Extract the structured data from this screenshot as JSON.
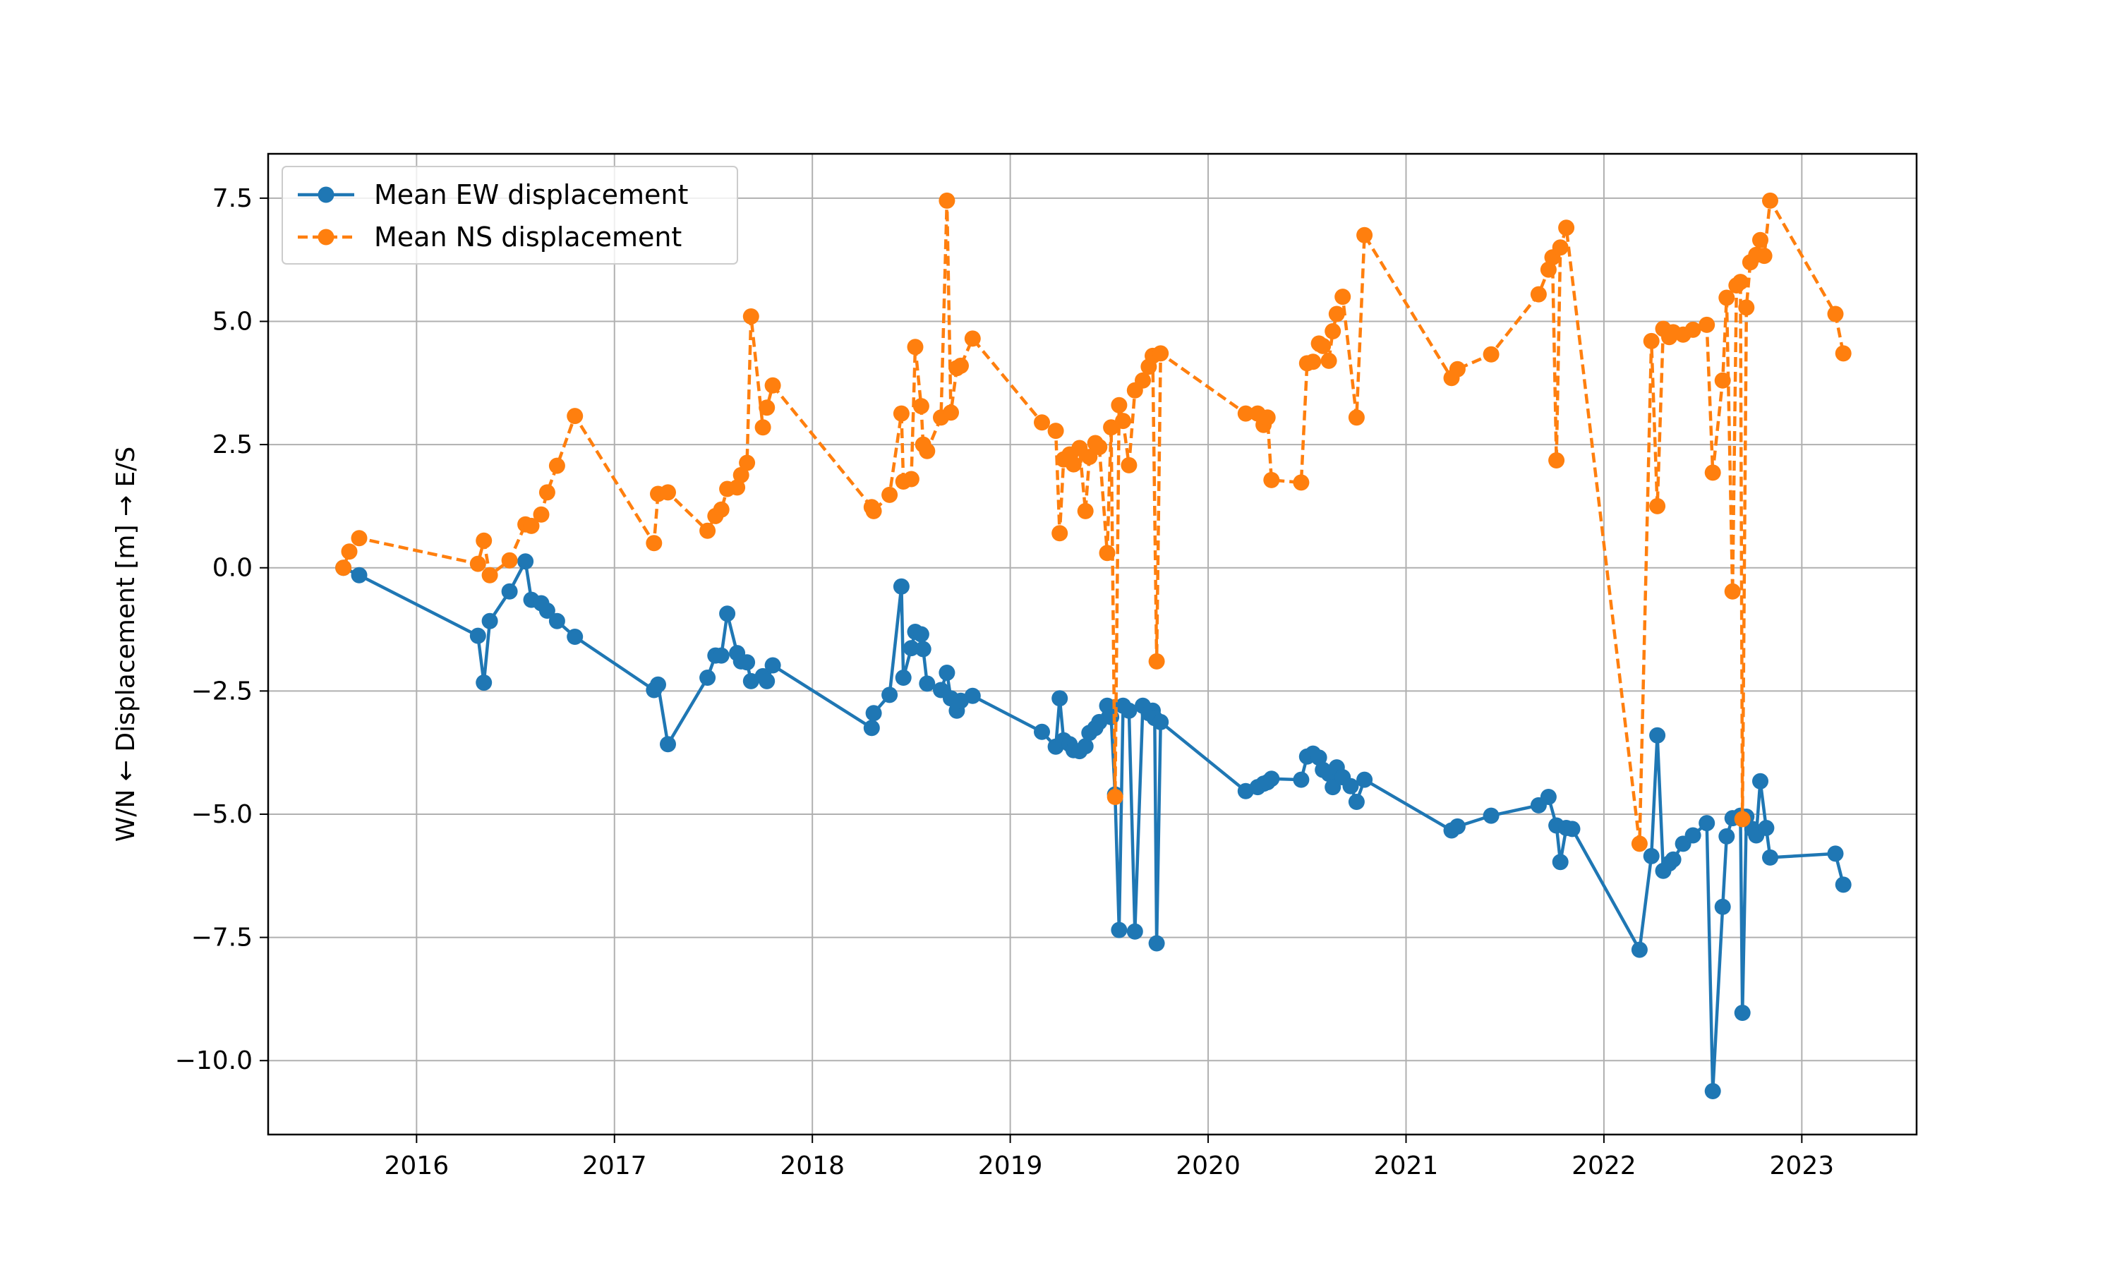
{
  "chart_data": {
    "type": "line",
    "xlabel": "",
    "ylabel": "W/N ← Displacement [m] → E/S",
    "x_tick_labels": [
      "2016",
      "2017",
      "2018",
      "2019",
      "2020",
      "2021",
      "2022",
      "2023"
    ],
    "y_tick_labels": [
      "−10.0",
      "−7.5",
      "−5.0",
      "−2.5",
      "0.0",
      "2.5",
      "5.0",
      "7.5"
    ],
    "xlim": [
      2015.25,
      2023.58
    ],
    "ylim": [
      -11.5,
      8.4
    ],
    "grid": true,
    "legend": "top-left",
    "series": [
      {
        "name": "Mean EW displacement",
        "color": "#1f77b4",
        "line_style": "solid",
        "marker": "circle",
        "points": [
          [
            2015.63,
            0.0
          ],
          [
            2015.71,
            -0.15
          ],
          [
            2016.31,
            -1.38
          ],
          [
            2016.34,
            -2.33
          ],
          [
            2016.37,
            -1.08
          ],
          [
            2016.47,
            -0.48
          ],
          [
            2016.55,
            0.13
          ],
          [
            2016.58,
            -0.65
          ],
          [
            2016.63,
            -0.72
          ],
          [
            2016.66,
            -0.87
          ],
          [
            2016.71,
            -1.08
          ],
          [
            2016.8,
            -1.4
          ],
          [
            2017.2,
            -2.48
          ],
          [
            2017.22,
            -2.37
          ],
          [
            2017.27,
            -3.58
          ],
          [
            2017.47,
            -2.23
          ],
          [
            2017.51,
            -1.78
          ],
          [
            2017.54,
            -1.78
          ],
          [
            2017.57,
            -0.93
          ],
          [
            2017.62,
            -1.73
          ],
          [
            2017.64,
            -1.9
          ],
          [
            2017.67,
            -1.92
          ],
          [
            2017.69,
            -2.3
          ],
          [
            2017.75,
            -2.2
          ],
          [
            2017.77,
            -2.3
          ],
          [
            2017.8,
            -1.98
          ],
          [
            2018.3,
            -3.25
          ],
          [
            2018.31,
            -2.95
          ],
          [
            2018.39,
            -2.58
          ],
          [
            2018.45,
            -0.38
          ],
          [
            2018.46,
            -2.23
          ],
          [
            2018.5,
            -1.63
          ],
          [
            2018.52,
            -1.3
          ],
          [
            2018.55,
            -1.35
          ],
          [
            2018.56,
            -1.65
          ],
          [
            2018.58,
            -2.35
          ],
          [
            2018.65,
            -2.48
          ],
          [
            2018.68,
            -2.13
          ],
          [
            2018.7,
            -2.65
          ],
          [
            2018.73,
            -2.9
          ],
          [
            2018.75,
            -2.7
          ],
          [
            2018.81,
            -2.6
          ],
          [
            2019.16,
            -3.33
          ],
          [
            2019.23,
            -3.63
          ],
          [
            2019.25,
            -2.65
          ],
          [
            2019.27,
            -3.5
          ],
          [
            2019.3,
            -3.58
          ],
          [
            2019.32,
            -3.7
          ],
          [
            2019.35,
            -3.72
          ],
          [
            2019.38,
            -3.62
          ],
          [
            2019.4,
            -3.35
          ],
          [
            2019.43,
            -3.25
          ],
          [
            2019.45,
            -3.13
          ],
          [
            2019.49,
            -2.8
          ],
          [
            2019.51,
            -3.03
          ],
          [
            2019.53,
            -4.6
          ],
          [
            2019.55,
            -7.35
          ],
          [
            2019.57,
            -2.8
          ],
          [
            2019.6,
            -2.9
          ],
          [
            2019.63,
            -7.38
          ],
          [
            2019.67,
            -2.8
          ],
          [
            2019.7,
            -2.95
          ],
          [
            2019.72,
            -2.9
          ],
          [
            2019.73,
            -3.05
          ],
          [
            2019.74,
            -7.62
          ],
          [
            2019.76,
            -3.13
          ],
          [
            2020.19,
            -4.53
          ],
          [
            2020.25,
            -4.45
          ],
          [
            2020.28,
            -4.38
          ],
          [
            2020.3,
            -4.35
          ],
          [
            2020.32,
            -4.28
          ],
          [
            2020.47,
            -4.3
          ],
          [
            2020.5,
            -3.83
          ],
          [
            2020.53,
            -3.77
          ],
          [
            2020.56,
            -3.85
          ],
          [
            2020.58,
            -4.1
          ],
          [
            2020.61,
            -4.18
          ],
          [
            2020.63,
            -4.45
          ],
          [
            2020.65,
            -4.05
          ],
          [
            2020.68,
            -4.25
          ],
          [
            2020.72,
            -4.43
          ],
          [
            2020.75,
            -4.75
          ],
          [
            2020.79,
            -4.3
          ],
          [
            2021.23,
            -5.33
          ],
          [
            2021.26,
            -5.25
          ],
          [
            2021.43,
            -5.03
          ],
          [
            2021.67,
            -4.82
          ],
          [
            2021.72,
            -4.65
          ],
          [
            2021.76,
            -5.23
          ],
          [
            2021.78,
            -5.97
          ],
          [
            2021.81,
            -5.28
          ],
          [
            2021.84,
            -5.3
          ],
          [
            2022.18,
            -7.75
          ],
          [
            2022.24,
            -5.85
          ],
          [
            2022.27,
            -3.4
          ],
          [
            2022.3,
            -6.15
          ],
          [
            2022.33,
            -6.0
          ],
          [
            2022.35,
            -5.92
          ],
          [
            2022.4,
            -5.6
          ],
          [
            2022.45,
            -5.43
          ],
          [
            2022.52,
            -5.18
          ],
          [
            2022.55,
            -10.62
          ],
          [
            2022.6,
            -6.88
          ],
          [
            2022.62,
            -5.45
          ],
          [
            2022.65,
            -5.08
          ],
          [
            2022.69,
            -5.03
          ],
          [
            2022.7,
            -9.03
          ],
          [
            2022.72,
            -5.05
          ],
          [
            2022.75,
            -5.3
          ],
          [
            2022.77,
            -5.43
          ],
          [
            2022.79,
            -4.33
          ],
          [
            2022.82,
            -5.28
          ],
          [
            2022.84,
            -5.88
          ],
          [
            2023.17,
            -5.8
          ],
          [
            2023.21,
            -6.43
          ]
        ]
      },
      {
        "name": "Mean NS displacement",
        "color": "#ff7f0e",
        "line_style": "dashed",
        "marker": "circle",
        "points": [
          [
            2015.63,
            0.0
          ],
          [
            2015.66,
            0.33
          ],
          [
            2015.71,
            0.6
          ],
          [
            2016.31,
            0.08
          ],
          [
            2016.34,
            0.55
          ],
          [
            2016.37,
            -0.15
          ],
          [
            2016.47,
            0.15
          ],
          [
            2016.55,
            0.88
          ],
          [
            2016.58,
            0.85
          ],
          [
            2016.63,
            1.08
          ],
          [
            2016.66,
            1.53
          ],
          [
            2016.71,
            2.07
          ],
          [
            2016.8,
            3.08
          ],
          [
            2017.2,
            0.5
          ],
          [
            2017.22,
            1.5
          ],
          [
            2017.27,
            1.53
          ],
          [
            2017.47,
            0.75
          ],
          [
            2017.51,
            1.05
          ],
          [
            2017.54,
            1.18
          ],
          [
            2017.57,
            1.6
          ],
          [
            2017.62,
            1.63
          ],
          [
            2017.64,
            1.88
          ],
          [
            2017.67,
            2.13
          ],
          [
            2017.69,
            5.1
          ],
          [
            2017.75,
            2.85
          ],
          [
            2017.77,
            3.25
          ],
          [
            2017.8,
            3.7
          ],
          [
            2018.3,
            1.23
          ],
          [
            2018.31,
            1.15
          ],
          [
            2018.39,
            1.48
          ],
          [
            2018.45,
            3.13
          ],
          [
            2018.46,
            1.75
          ],
          [
            2018.5,
            1.8
          ],
          [
            2018.52,
            4.48
          ],
          [
            2018.55,
            3.28
          ],
          [
            2018.56,
            2.5
          ],
          [
            2018.58,
            2.37
          ],
          [
            2018.65,
            3.05
          ],
          [
            2018.68,
            7.45
          ],
          [
            2018.7,
            3.15
          ],
          [
            2018.73,
            4.05
          ],
          [
            2018.75,
            4.1
          ],
          [
            2018.81,
            4.65
          ],
          [
            2019.16,
            2.95
          ],
          [
            2019.23,
            2.78
          ],
          [
            2019.25,
            0.7
          ],
          [
            2019.27,
            2.2
          ],
          [
            2019.3,
            2.3
          ],
          [
            2019.32,
            2.1
          ],
          [
            2019.35,
            2.43
          ],
          [
            2019.38,
            1.15
          ],
          [
            2019.4,
            2.25
          ],
          [
            2019.43,
            2.53
          ],
          [
            2019.45,
            2.45
          ],
          [
            2019.49,
            0.3
          ],
          [
            2019.51,
            2.85
          ],
          [
            2019.53,
            -4.65
          ],
          [
            2019.55,
            3.3
          ],
          [
            2019.57,
            2.98
          ],
          [
            2019.6,
            2.08
          ],
          [
            2019.63,
            3.6
          ],
          [
            2019.67,
            3.8
          ],
          [
            2019.7,
            4.08
          ],
          [
            2019.72,
            4.3
          ],
          [
            2019.74,
            -1.9
          ],
          [
            2019.76,
            4.35
          ],
          [
            2020.19,
            3.13
          ],
          [
            2020.25,
            3.13
          ],
          [
            2020.28,
            2.9
          ],
          [
            2020.3,
            3.05
          ],
          [
            2020.32,
            1.78
          ],
          [
            2020.47,
            1.73
          ],
          [
            2020.5,
            4.15
          ],
          [
            2020.53,
            4.18
          ],
          [
            2020.56,
            4.55
          ],
          [
            2020.58,
            4.5
          ],
          [
            2020.61,
            4.2
          ],
          [
            2020.63,
            4.8
          ],
          [
            2020.65,
            5.15
          ],
          [
            2020.68,
            5.5
          ],
          [
            2020.75,
            3.05
          ],
          [
            2020.79,
            6.75
          ],
          [
            2021.23,
            3.85
          ],
          [
            2021.26,
            4.03
          ],
          [
            2021.43,
            4.33
          ],
          [
            2021.67,
            5.55
          ],
          [
            2021.72,
            6.05
          ],
          [
            2021.74,
            6.3
          ],
          [
            2021.76,
            2.18
          ],
          [
            2021.78,
            6.5
          ],
          [
            2021.81,
            6.9
          ],
          [
            2022.18,
            -5.6
          ],
          [
            2022.24,
            4.6
          ],
          [
            2022.27,
            1.25
          ],
          [
            2022.3,
            4.85
          ],
          [
            2022.33,
            4.68
          ],
          [
            2022.35,
            4.78
          ],
          [
            2022.4,
            4.73
          ],
          [
            2022.45,
            4.83
          ],
          [
            2022.52,
            4.93
          ],
          [
            2022.55,
            1.93
          ],
          [
            2022.6,
            3.8
          ],
          [
            2022.62,
            5.48
          ],
          [
            2022.65,
            -0.48
          ],
          [
            2022.67,
            5.73
          ],
          [
            2022.69,
            5.8
          ],
          [
            2022.7,
            -5.1
          ],
          [
            2022.72,
            5.28
          ],
          [
            2022.74,
            6.2
          ],
          [
            2022.77,
            6.35
          ],
          [
            2022.79,
            6.65
          ],
          [
            2022.81,
            6.33
          ],
          [
            2022.84,
            7.45
          ],
          [
            2023.17,
            5.15
          ],
          [
            2023.21,
            4.35
          ]
        ]
      }
    ]
  }
}
